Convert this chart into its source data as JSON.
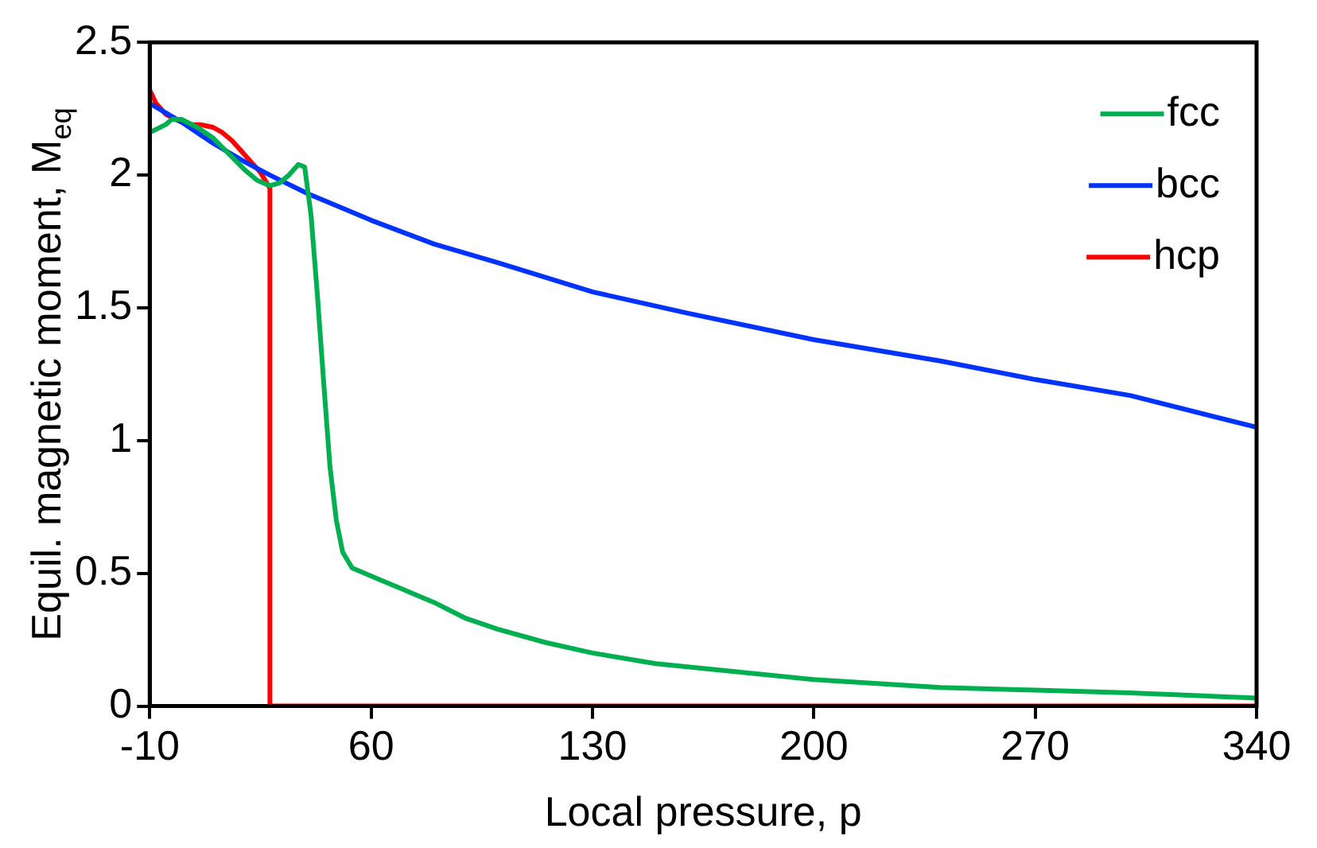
{
  "chart_data": {
    "type": "line",
    "xlabel": "Local pressure, p",
    "ylabel": "Equil. magnetic moment, M$_{eq}$",
    "xlim": [
      -10,
      340
    ],
    "xticks": [
      -10,
      60,
      130,
      200,
      270,
      340
    ],
    "ylim": [
      0,
      2.5
    ],
    "yticks": [
      0,
      0.5,
      1,
      1.5,
      2,
      2.5
    ],
    "grid": false,
    "legend": "top right",
    "marker": "none",
    "line_style": "solid",
    "series": [
      {
        "name": "fcc",
        "color": "#00b050",
        "x": [
          -10,
          -5,
          -3,
          0,
          5,
          10,
          15,
          20,
          24,
          28,
          31,
          34,
          37,
          39,
          41,
          43,
          45,
          47,
          49,
          51,
          54,
          58,
          62,
          70,
          80,
          90,
          100,
          115,
          130,
          150,
          175,
          200,
          240,
          270,
          300,
          340
        ],
        "values": [
          2.16,
          2.19,
          2.21,
          2.21,
          2.18,
          2.14,
          2.08,
          2.02,
          1.98,
          1.96,
          1.97,
          2.0,
          2.04,
          2.03,
          1.85,
          1.55,
          1.22,
          0.9,
          0.7,
          0.58,
          0.52,
          0.5,
          0.48,
          0.44,
          0.39,
          0.33,
          0.29,
          0.24,
          0.2,
          0.16,
          0.13,
          0.1,
          0.07,
          0.06,
          0.05,
          0.03
        ]
      },
      {
        "name": "bcc",
        "color": "#0033ff",
        "x": [
          -10,
          0,
          10,
          20,
          28,
          40,
          60,
          80,
          100,
          130,
          160,
          200,
          240,
          270,
          300,
          340
        ],
        "values": [
          2.27,
          2.2,
          2.12,
          2.05,
          2.0,
          1.93,
          1.83,
          1.74,
          1.67,
          1.56,
          1.48,
          1.38,
          1.3,
          1.23,
          1.17,
          1.05
        ]
      },
      {
        "name": "hcp",
        "color": "#ff0000",
        "x": [
          -10,
          -8,
          -5,
          -2,
          0,
          3,
          6,
          10,
          13,
          16,
          19,
          22,
          25,
          27,
          28,
          28,
          340
        ],
        "values": [
          2.32,
          2.27,
          2.23,
          2.21,
          2.2,
          2.19,
          2.19,
          2.18,
          2.16,
          2.13,
          2.09,
          2.05,
          2.01,
          1.97,
          1.95,
          0,
          0
        ]
      }
    ]
  }
}
